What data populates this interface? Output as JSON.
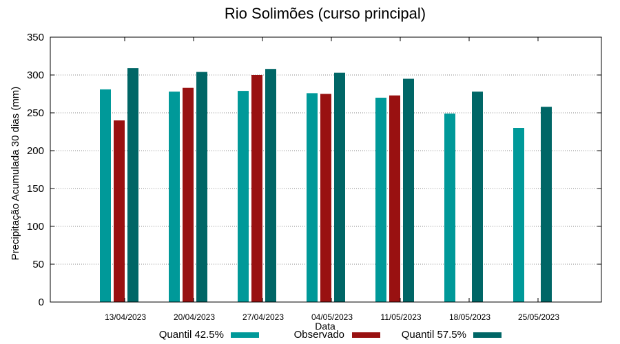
{
  "chart_data": {
    "type": "bar",
    "title": "Rio Solimões (curso principal)",
    "xlabel": "Data",
    "ylabel": "Precipitação Acumulada 30 dias (mm)",
    "ylim": [
      0,
      350
    ],
    "yticks": [
      0,
      50,
      100,
      150,
      200,
      250,
      300,
      350
    ],
    "grid": true,
    "legend_position": "bottom",
    "categories": [
      "13/04/2023",
      "20/04/2023",
      "27/04/2023",
      "04/05/2023",
      "11/05/2023",
      "18/05/2023",
      "25/05/2023"
    ],
    "series": [
      {
        "name": "Quantil 42.5%",
        "color": "#009999",
        "values": [
          281,
          278,
          279,
          276,
          270,
          249,
          230
        ]
      },
      {
        "name": "Observado",
        "color": "#991111",
        "values": [
          240,
          283,
          300,
          275,
          273,
          null,
          null
        ]
      },
      {
        "name": "Quantil 57.5%",
        "color": "#006666",
        "values": [
          309,
          304,
          308,
          303,
          295,
          278,
          258
        ]
      }
    ]
  }
}
